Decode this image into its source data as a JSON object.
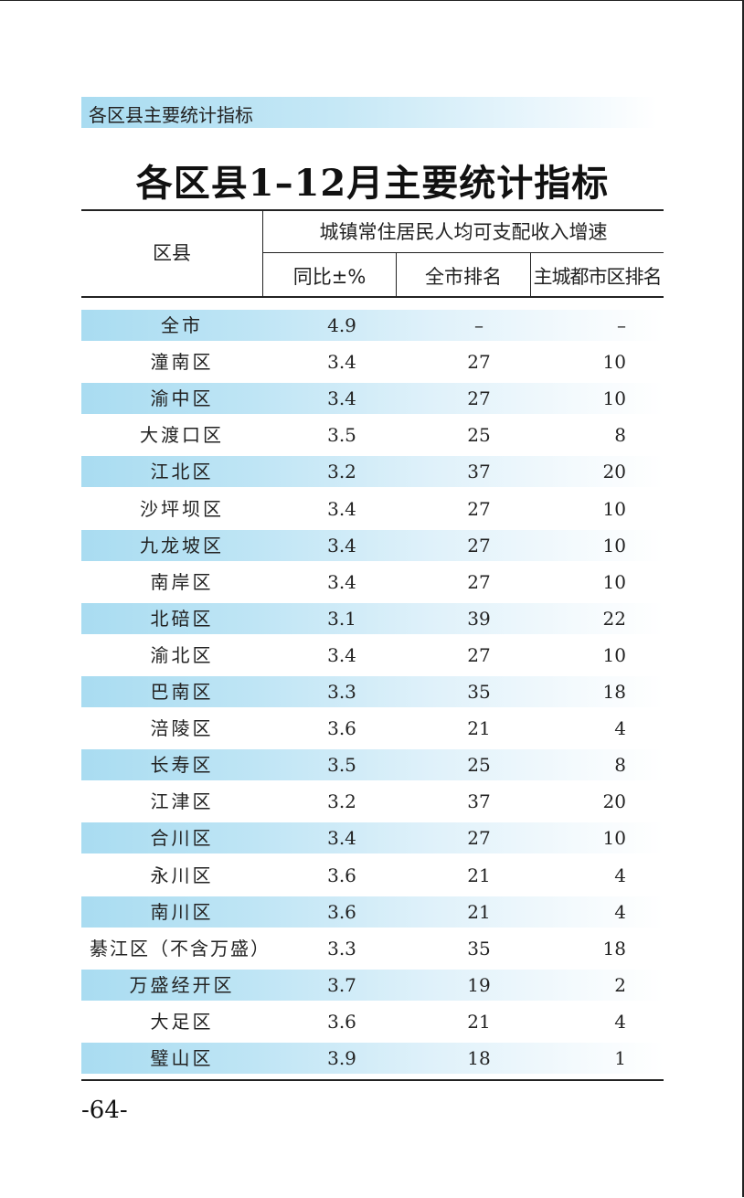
{
  "section_header": "各区县主要统计指标",
  "title": "各区县1–12月主要统计指标",
  "table": {
    "col_district": "区县",
    "group_header": "城镇常住居民人均可支配收入增速",
    "col_yoy": "同比±%",
    "col_city_rank": "全市排名",
    "col_main_rank": "主城都市区排名",
    "rows": [
      {
        "name": "全市",
        "yoy": "4.9",
        "city_rank": "–",
        "main_rank": "–"
      },
      {
        "name": "潼南区",
        "yoy": "3.4",
        "city_rank": "27",
        "main_rank": "10"
      },
      {
        "name": "渝中区",
        "yoy": "3.4",
        "city_rank": "27",
        "main_rank": "10"
      },
      {
        "name": "大渡口区",
        "yoy": "3.5",
        "city_rank": "25",
        "main_rank": "8"
      },
      {
        "name": "江北区",
        "yoy": "3.2",
        "city_rank": "37",
        "main_rank": "20"
      },
      {
        "name": "沙坪坝区",
        "yoy": "3.4",
        "city_rank": "27",
        "main_rank": "10"
      },
      {
        "name": "九龙坡区",
        "yoy": "3.4",
        "city_rank": "27",
        "main_rank": "10"
      },
      {
        "name": "南岸区",
        "yoy": "3.4",
        "city_rank": "27",
        "main_rank": "10"
      },
      {
        "name": "北碚区",
        "yoy": "3.1",
        "city_rank": "39",
        "main_rank": "22"
      },
      {
        "name": "渝北区",
        "yoy": "3.4",
        "city_rank": "27",
        "main_rank": "10"
      },
      {
        "name": "巴南区",
        "yoy": "3.3",
        "city_rank": "35",
        "main_rank": "18"
      },
      {
        "name": "涪陵区",
        "yoy": "3.6",
        "city_rank": "21",
        "main_rank": "4"
      },
      {
        "name": "长寿区",
        "yoy": "3.5",
        "city_rank": "25",
        "main_rank": "8"
      },
      {
        "name": "江津区",
        "yoy": "3.2",
        "city_rank": "37",
        "main_rank": "20"
      },
      {
        "name": "合川区",
        "yoy": "3.4",
        "city_rank": "27",
        "main_rank": "10"
      },
      {
        "name": "永川区",
        "yoy": "3.6",
        "city_rank": "21",
        "main_rank": "4"
      },
      {
        "name": "南川区",
        "yoy": "3.6",
        "city_rank": "21",
        "main_rank": "4"
      },
      {
        "name": "綦江区（不含万盛）",
        "yoy": "3.3",
        "city_rank": "35",
        "main_rank": "18"
      },
      {
        "name": "万盛经开区",
        "yoy": "3.7",
        "city_rank": "19",
        "main_rank": "2"
      },
      {
        "name": "大足区",
        "yoy": "3.6",
        "city_rank": "21",
        "main_rank": "4"
      },
      {
        "name": "璧山区",
        "yoy": "3.9",
        "city_rank": "18",
        "main_rank": "1"
      }
    ]
  },
  "page_number": "-64-"
}
